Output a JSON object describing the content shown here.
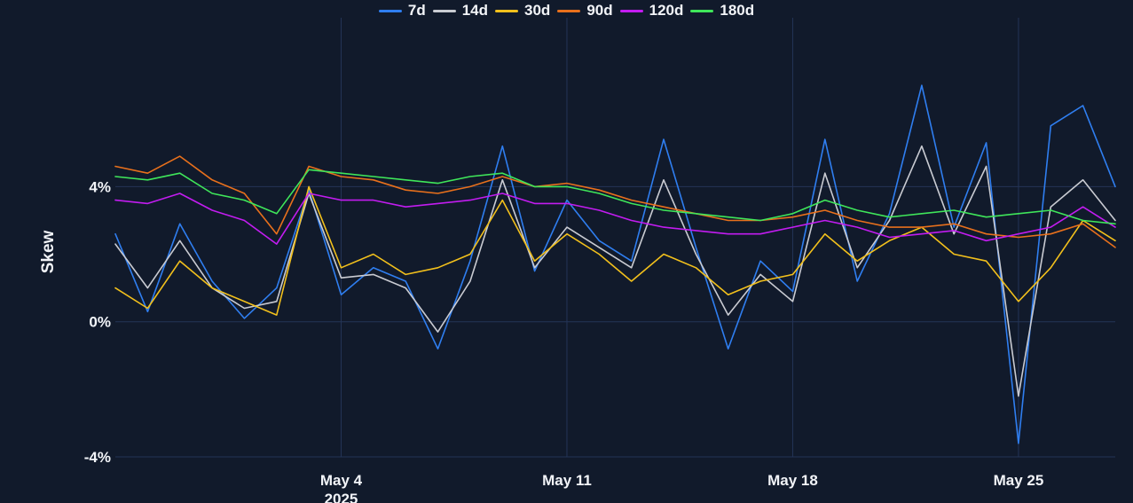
{
  "chart_data": {
    "type": "line",
    "title": "",
    "xlabel": "",
    "ylabel": "Skew",
    "x_range": [
      "2025-04-27",
      "2025-05-28"
    ],
    "ylim": [
      -4,
      9
    ],
    "yticks": [
      {
        "value": -4,
        "label": "-4%"
      },
      {
        "value": 0,
        "label": "0%"
      },
      {
        "value": 4,
        "label": "4%"
      }
    ],
    "xticks": [
      {
        "date": "2025-05-04",
        "label": "May 4",
        "sublabel": "2025"
      },
      {
        "date": "2025-05-11",
        "label": "May 11"
      },
      {
        "date": "2025-05-18",
        "label": "May 18"
      },
      {
        "date": "2025-05-25",
        "label": "May 25"
      }
    ],
    "grid": true,
    "legend_position": "top-center",
    "series": [
      {
        "name": "7d",
        "color": "#2f7ef0",
        "points": [
          [
            "2025-04-27",
            2.6
          ],
          [
            "2025-04-28",
            0.3
          ],
          [
            "2025-04-29",
            2.9
          ],
          [
            "2025-04-30",
            1.2
          ],
          [
            "2025-05-01",
            0.1
          ],
          [
            "2025-05-02",
            1.0
          ],
          [
            "2025-05-03",
            3.9
          ],
          [
            "2025-05-04",
            0.8
          ],
          [
            "2025-05-05",
            1.6
          ],
          [
            "2025-05-06",
            1.2
          ],
          [
            "2025-05-07",
            -0.8
          ],
          [
            "2025-05-08",
            1.8
          ],
          [
            "2025-05-09",
            5.2
          ],
          [
            "2025-05-10",
            1.5
          ],
          [
            "2025-05-11",
            3.6
          ],
          [
            "2025-05-12",
            2.4
          ],
          [
            "2025-05-13",
            1.8
          ],
          [
            "2025-05-14",
            5.4
          ],
          [
            "2025-05-15",
            2.2
          ],
          [
            "2025-05-16",
            -0.8
          ],
          [
            "2025-05-17",
            1.8
          ],
          [
            "2025-05-18",
            0.9
          ],
          [
            "2025-05-19",
            5.4
          ],
          [
            "2025-05-20",
            1.2
          ],
          [
            "2025-05-21",
            3.2
          ],
          [
            "2025-05-22",
            7.0
          ],
          [
            "2025-05-23",
            2.8
          ],
          [
            "2025-05-24",
            5.3
          ],
          [
            "2025-05-25",
            -3.6
          ],
          [
            "2025-05-26",
            5.8
          ],
          [
            "2025-05-27",
            6.4
          ],
          [
            "2025-05-28",
            4.0
          ]
        ]
      },
      {
        "name": "14d",
        "color": "#c9cbd2",
        "points": [
          [
            "2025-04-27",
            2.3
          ],
          [
            "2025-04-28",
            1.0
          ],
          [
            "2025-04-29",
            2.4
          ],
          [
            "2025-04-30",
            1.0
          ],
          [
            "2025-05-01",
            0.4
          ],
          [
            "2025-05-02",
            0.6
          ],
          [
            "2025-05-03",
            3.8
          ],
          [
            "2025-05-04",
            1.3
          ],
          [
            "2025-05-05",
            1.4
          ],
          [
            "2025-05-06",
            1.0
          ],
          [
            "2025-05-07",
            -0.3
          ],
          [
            "2025-05-08",
            1.2
          ],
          [
            "2025-05-09",
            4.2
          ],
          [
            "2025-05-10",
            1.6
          ],
          [
            "2025-05-11",
            2.8
          ],
          [
            "2025-05-12",
            2.2
          ],
          [
            "2025-05-13",
            1.6
          ],
          [
            "2025-05-14",
            4.2
          ],
          [
            "2025-05-15",
            2.0
          ],
          [
            "2025-05-16",
            0.2
          ],
          [
            "2025-05-17",
            1.4
          ],
          [
            "2025-05-18",
            0.6
          ],
          [
            "2025-05-19",
            4.4
          ],
          [
            "2025-05-20",
            1.6
          ],
          [
            "2025-05-21",
            3.0
          ],
          [
            "2025-05-22",
            5.2
          ],
          [
            "2025-05-23",
            2.6
          ],
          [
            "2025-05-24",
            4.6
          ],
          [
            "2025-05-25",
            -2.2
          ],
          [
            "2025-05-26",
            3.4
          ],
          [
            "2025-05-27",
            4.2
          ],
          [
            "2025-05-28",
            3.0
          ]
        ]
      },
      {
        "name": "30d",
        "color": "#f2c01c",
        "points": [
          [
            "2025-04-27",
            1.0
          ],
          [
            "2025-04-28",
            0.4
          ],
          [
            "2025-04-29",
            1.8
          ],
          [
            "2025-04-30",
            1.0
          ],
          [
            "2025-05-01",
            0.6
          ],
          [
            "2025-05-02",
            0.2
          ],
          [
            "2025-05-03",
            4.0
          ],
          [
            "2025-05-04",
            1.6
          ],
          [
            "2025-05-05",
            2.0
          ],
          [
            "2025-05-06",
            1.4
          ],
          [
            "2025-05-07",
            1.6
          ],
          [
            "2025-05-08",
            2.0
          ],
          [
            "2025-05-09",
            3.6
          ],
          [
            "2025-05-10",
            1.8
          ],
          [
            "2025-05-11",
            2.6
          ],
          [
            "2025-05-12",
            2.0
          ],
          [
            "2025-05-13",
            1.2
          ],
          [
            "2025-05-14",
            2.0
          ],
          [
            "2025-05-15",
            1.6
          ],
          [
            "2025-05-16",
            0.8
          ],
          [
            "2025-05-17",
            1.2
          ],
          [
            "2025-05-18",
            1.4
          ],
          [
            "2025-05-19",
            2.6
          ],
          [
            "2025-05-20",
            1.8
          ],
          [
            "2025-05-21",
            2.4
          ],
          [
            "2025-05-22",
            2.8
          ],
          [
            "2025-05-23",
            2.0
          ],
          [
            "2025-05-24",
            1.8
          ],
          [
            "2025-05-25",
            0.6
          ],
          [
            "2025-05-26",
            1.6
          ],
          [
            "2025-05-27",
            3.0
          ],
          [
            "2025-05-28",
            2.4
          ]
        ]
      },
      {
        "name": "90d",
        "color": "#e8701c",
        "points": [
          [
            "2025-04-27",
            4.6
          ],
          [
            "2025-04-28",
            4.4
          ],
          [
            "2025-04-29",
            4.9
          ],
          [
            "2025-04-30",
            4.2
          ],
          [
            "2025-05-01",
            3.8
          ],
          [
            "2025-05-02",
            2.6
          ],
          [
            "2025-05-03",
            4.6
          ],
          [
            "2025-05-04",
            4.3
          ],
          [
            "2025-05-05",
            4.2
          ],
          [
            "2025-05-06",
            3.9
          ],
          [
            "2025-05-07",
            3.8
          ],
          [
            "2025-05-08",
            4.0
          ],
          [
            "2025-05-09",
            4.3
          ],
          [
            "2025-05-10",
            4.0
          ],
          [
            "2025-05-11",
            4.1
          ],
          [
            "2025-05-12",
            3.9
          ],
          [
            "2025-05-13",
            3.6
          ],
          [
            "2025-05-14",
            3.4
          ],
          [
            "2025-05-15",
            3.2
          ],
          [
            "2025-05-16",
            3.0
          ],
          [
            "2025-05-17",
            3.0
          ],
          [
            "2025-05-18",
            3.1
          ],
          [
            "2025-05-19",
            3.3
          ],
          [
            "2025-05-20",
            3.0
          ],
          [
            "2025-05-21",
            2.8
          ],
          [
            "2025-05-22",
            2.8
          ],
          [
            "2025-05-23",
            2.9
          ],
          [
            "2025-05-24",
            2.6
          ],
          [
            "2025-05-25",
            2.5
          ],
          [
            "2025-05-26",
            2.6
          ],
          [
            "2025-05-27",
            2.9
          ],
          [
            "2025-05-28",
            2.2
          ]
        ]
      },
      {
        "name": "120d",
        "color": "#c21cf0",
        "points": [
          [
            "2025-04-27",
            3.6
          ],
          [
            "2025-04-28",
            3.5
          ],
          [
            "2025-04-29",
            3.8
          ],
          [
            "2025-04-30",
            3.3
          ],
          [
            "2025-05-01",
            3.0
          ],
          [
            "2025-05-02",
            2.3
          ],
          [
            "2025-05-03",
            3.8
          ],
          [
            "2025-05-04",
            3.6
          ],
          [
            "2025-05-05",
            3.6
          ],
          [
            "2025-05-06",
            3.4
          ],
          [
            "2025-05-07",
            3.5
          ],
          [
            "2025-05-08",
            3.6
          ],
          [
            "2025-05-09",
            3.8
          ],
          [
            "2025-05-10",
            3.5
          ],
          [
            "2025-05-11",
            3.5
          ],
          [
            "2025-05-12",
            3.3
          ],
          [
            "2025-05-13",
            3.0
          ],
          [
            "2025-05-14",
            2.8
          ],
          [
            "2025-05-15",
            2.7
          ],
          [
            "2025-05-16",
            2.6
          ],
          [
            "2025-05-17",
            2.6
          ],
          [
            "2025-05-18",
            2.8
          ],
          [
            "2025-05-19",
            3.0
          ],
          [
            "2025-05-20",
            2.8
          ],
          [
            "2025-05-21",
            2.5
          ],
          [
            "2025-05-22",
            2.6
          ],
          [
            "2025-05-23",
            2.7
          ],
          [
            "2025-05-24",
            2.4
          ],
          [
            "2025-05-25",
            2.6
          ],
          [
            "2025-05-26",
            2.8
          ],
          [
            "2025-05-27",
            3.4
          ],
          [
            "2025-05-28",
            2.8
          ]
        ]
      },
      {
        "name": "180d",
        "color": "#3fe65a",
        "points": [
          [
            "2025-04-27",
            4.3
          ],
          [
            "2025-04-28",
            4.2
          ],
          [
            "2025-04-29",
            4.4
          ],
          [
            "2025-04-30",
            3.8
          ],
          [
            "2025-05-01",
            3.6
          ],
          [
            "2025-05-02",
            3.2
          ],
          [
            "2025-05-03",
            4.5
          ],
          [
            "2025-05-04",
            4.4
          ],
          [
            "2025-05-05",
            4.3
          ],
          [
            "2025-05-06",
            4.2
          ],
          [
            "2025-05-07",
            4.1
          ],
          [
            "2025-05-08",
            4.3
          ],
          [
            "2025-05-09",
            4.4
          ],
          [
            "2025-05-10",
            4.0
          ],
          [
            "2025-05-11",
            4.0
          ],
          [
            "2025-05-12",
            3.8
          ],
          [
            "2025-05-13",
            3.5
          ],
          [
            "2025-05-14",
            3.3
          ],
          [
            "2025-05-15",
            3.2
          ],
          [
            "2025-05-16",
            3.1
          ],
          [
            "2025-05-17",
            3.0
          ],
          [
            "2025-05-18",
            3.2
          ],
          [
            "2025-05-19",
            3.6
          ],
          [
            "2025-05-20",
            3.3
          ],
          [
            "2025-05-21",
            3.1
          ],
          [
            "2025-05-22",
            3.2
          ],
          [
            "2025-05-23",
            3.3
          ],
          [
            "2025-05-24",
            3.1
          ],
          [
            "2025-05-25",
            3.2
          ],
          [
            "2025-05-26",
            3.3
          ],
          [
            "2025-05-27",
            3.0
          ],
          [
            "2025-05-28",
            2.9
          ]
        ]
      }
    ]
  }
}
